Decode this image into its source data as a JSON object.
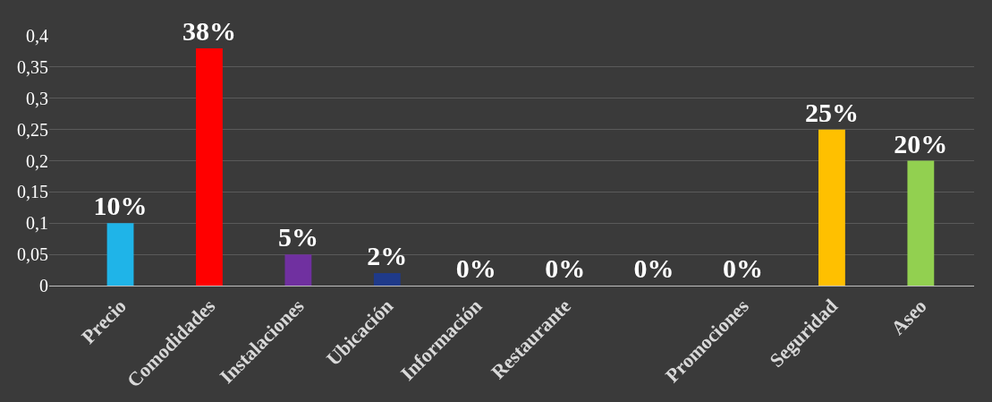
{
  "chart_data": {
    "type": "bar",
    "categories": [
      "Precio",
      "Comodidades",
      "Instalaciones",
      "Ubicación",
      "Información",
      "Restaurante",
      null,
      "Promociones",
      "Seguridad",
      "Aseo"
    ],
    "values": [
      0.1,
      0.38,
      0.05,
      0.02,
      0,
      0,
      0,
      0,
      0.25,
      0.2
    ],
    "colors": [
      "#1fb4e8",
      "#ff0000",
      "#7030a0",
      "#1f3a8a",
      "#7f7f7f",
      "#7f7f7f",
      "#7f7f7f",
      "#7f7f7f",
      "#ffc000",
      "#92d050"
    ],
    "value_labels": [
      "10%",
      "38%",
      "5%",
      "2%",
      "0%",
      "0%",
      "0%",
      "0%",
      "25%",
      "20%"
    ],
    "ylim": [
      0,
      0.4
    ],
    "yticks": [
      0,
      {
        "value": 0.05,
        "label": "0,05"
      },
      {
        "value": 0.1,
        "label": "0,1"
      },
      {
        "value": 0.15,
        "label": "0,15"
      },
      {
        "value": 0.2,
        "label": "0,2"
      },
      {
        "value": 0.25,
        "label": "0,25"
      },
      {
        "value": 0.3,
        "label": "0,3"
      },
      {
        "value": 0.35,
        "label": "0,35"
      },
      {
        "value": 0.4,
        "label": "0,4"
      }
    ],
    "grid": "y",
    "legend": false
  }
}
